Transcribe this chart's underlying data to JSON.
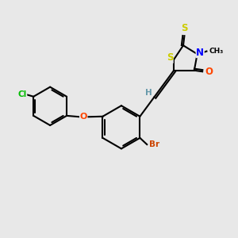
{
  "bg_color": "#e8e8e8",
  "atom_colors": {
    "C": "#000000",
    "H": "#6699aa",
    "N": "#0000ff",
    "O": "#ff4500",
    "S": "#cccc00",
    "Cl": "#00bb00",
    "Br": "#cc4400"
  },
  "bond_color": "#000000",
  "bond_width": 1.5,
  "dbo": 0.08
}
